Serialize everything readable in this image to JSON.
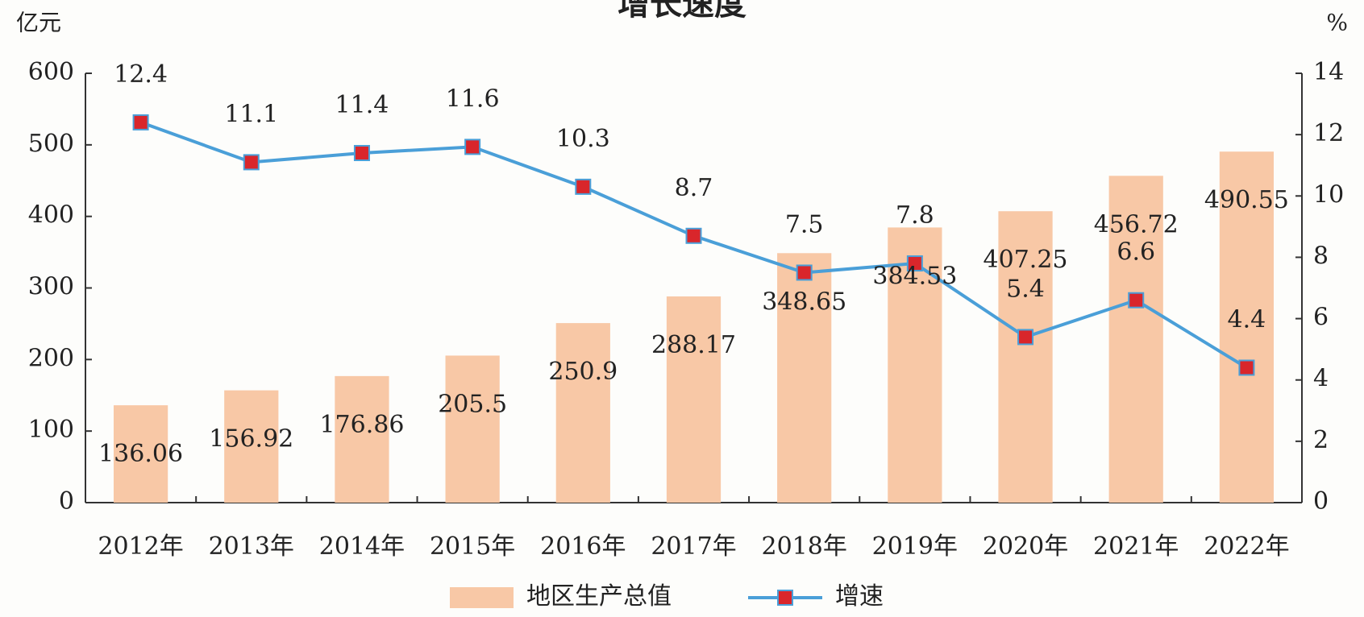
{
  "chart_data": {
    "type": "bar_line",
    "title": "增长速度",
    "y_label": "亿元",
    "y2_label": "%",
    "categories": [
      "2012年",
      "2013年",
      "2014年",
      "2015年",
      "2016年",
      "2017年",
      "2018年",
      "2019年",
      "2020年",
      "2021年",
      "2022年"
    ],
    "series": [
      {
        "name": "地区生产总值",
        "type": "bar",
        "color": "#f8c8a6",
        "values": [
          136.06,
          156.92,
          176.86,
          205.5,
          250.9,
          288.17,
          348.65,
          384.53,
          407.25,
          456.72,
          490.55
        ]
      },
      {
        "name": "增速",
        "type": "line",
        "axis": "y2",
        "color": "#4a9fd8",
        "marker_color": "#d9262b",
        "values": [
          12.4,
          11.1,
          11.4,
          11.6,
          10.3,
          8.7,
          7.5,
          7.8,
          5.4,
          6.6,
          4.4
        ]
      }
    ],
    "ylim": [
      0,
      600
    ],
    "yticks": [
      0,
      100,
      200,
      300,
      400,
      500,
      600
    ],
    "y2lim": [
      0,
      14
    ],
    "y2ticks": [
      0,
      2,
      4,
      6,
      8,
      10,
      12,
      14
    ]
  }
}
